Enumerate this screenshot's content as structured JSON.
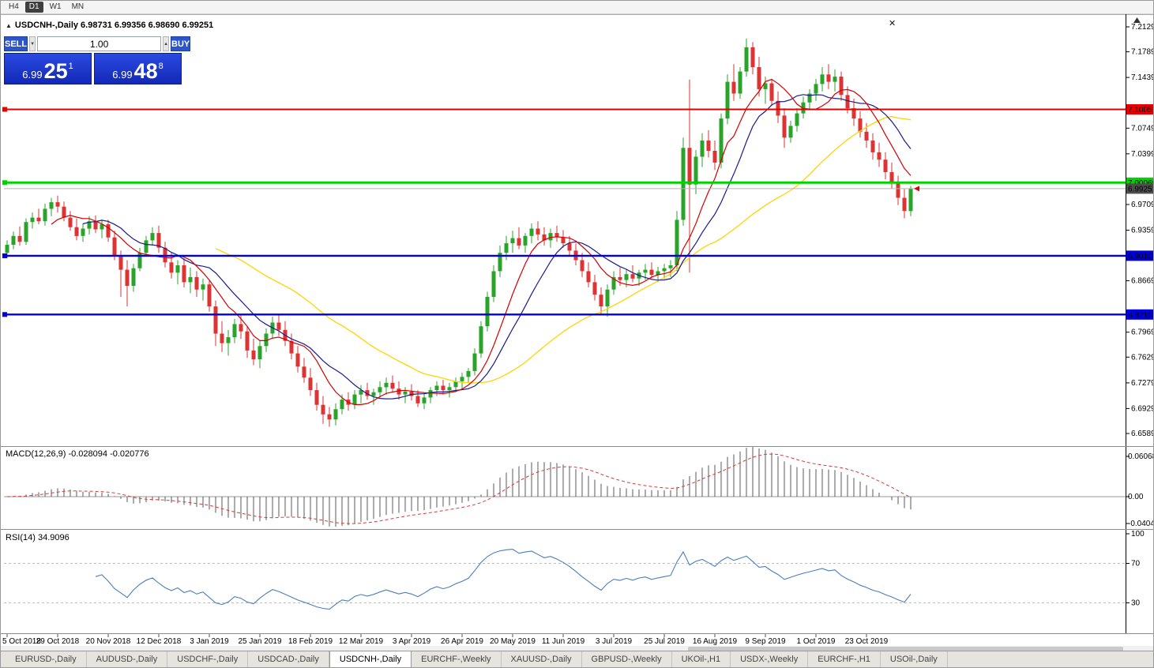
{
  "colors": {
    "up": "#29a329",
    "down": "#dd3333",
    "ma_fast": "#d40000",
    "ma_mid": "#1a1a8c",
    "ma_slow": "#ffd400",
    "line_red": "#e60000",
    "line_green": "#00d400",
    "line_blue": "#0000dd",
    "current_line": "#b4b4b4",
    "current_label_bg": "#4d4d4d",
    "macd_hist": "#5a5a5a",
    "macd_signal": "#d43c3c",
    "rsi_line": "#4a7ebb",
    "accent_blue": "#1d3fd4"
  },
  "icons": {
    "close": "✕",
    "collapse": "▲",
    "spin_up": "▲",
    "spin_down": "▼"
  },
  "toolbar": {
    "timeframes": [
      {
        "label": "H4",
        "active": false
      },
      {
        "label": "D1",
        "active": true
      },
      {
        "label": "W1",
        "active": false
      },
      {
        "label": "MN",
        "active": false
      }
    ]
  },
  "chart_window": {
    "title": "USDCNH-,Daily 6.98731 6.99356 6.98690 6.99251"
  },
  "trade_panel": {
    "sell_label": "SELL",
    "buy_label": "BUY",
    "volume": "1.00",
    "sell_price_main": "6.99",
    "sell_price_big": "25",
    "sell_price_sup": "1",
    "buy_price_main": "6.99",
    "buy_price_big": "48",
    "buy_price_sup": "8"
  },
  "price_axis": {
    "ticks": [
      "7.21290",
      "7.17890",
      "7.14390",
      "7.07490",
      "7.03990",
      "6.97090",
      "6.93590",
      "6.86690",
      "6.79690",
      "6.76290",
      "6.72790",
      "6.69290",
      "6.65890"
    ],
    "levels": [
      {
        "value": "7.10051",
        "color": "red"
      },
      {
        "value": "7.00069",
        "color": "green"
      },
      {
        "value": "6.99251",
        "color": "current"
      },
      {
        "value": "6.90100",
        "color": "blue"
      },
      {
        "value": "6.82103",
        "color": "blue"
      }
    ]
  },
  "macd_panel": {
    "label": "MACD(12,26,9) -0.028094 -0.020776",
    "axis": [
      "0.060687",
      "0.00",
      "-0.040431"
    ]
  },
  "rsi_panel": {
    "label": "RSI(14) 34.9096",
    "axis": [
      "100",
      "70",
      "30"
    ],
    "level_lines": [
      70,
      30
    ]
  },
  "tabs": [
    {
      "label": "EURUSD-,Daily",
      "active": false
    },
    {
      "label": "AUDUSD-,Daily",
      "active": false
    },
    {
      "label": "USDCHF-,Daily",
      "active": false
    },
    {
      "label": "USDCAD-,Daily",
      "active": false
    },
    {
      "label": "USDCNH-,Daily",
      "active": true
    },
    {
      "label": "EURCHF-,Weekly",
      "active": false
    },
    {
      "label": "XAUUSD-,Daily",
      "active": false
    },
    {
      "label": "GBPUSD-,Weekly",
      "active": false
    },
    {
      "label": "UKOil-,H1",
      "active": false
    },
    {
      "label": "USDX-,Weekly",
      "active": false
    },
    {
      "label": "EURCHF-,H1",
      "active": false
    },
    {
      "label": "USOil-,Daily",
      "active": false
    }
  ],
  "chart_data": {
    "type": "candlestick",
    "symbol": "USDCNH",
    "timeframe": "Daily",
    "y_range": [
      6.6589,
      7.2129
    ],
    "x_labels": [
      "5 Oct 2018",
      "29 Oct 2018",
      "20 Nov 2018",
      "12 Dec 2018",
      "3 Jan 2019",
      "25 Jan 2019",
      "18 Feb 2019",
      "12 Mar 2019",
      "3 Apr 2019",
      "26 Apr 2019",
      "20 May 2019",
      "11 Jun 2019",
      "3 Jul 2019",
      "25 Jul 2019",
      "16 Aug 2019",
      "9 Sep 2019",
      "1 Oct 2019",
      "23 Oct 2019"
    ],
    "x_label_every": 8,
    "levels": {
      "resistance_red": 7.10051,
      "pivot_green": 7.00069,
      "current_price": 6.99251,
      "support_blue_upper": 6.901,
      "support_blue_lower": 6.82103
    },
    "indicators": {
      "ma_periods": [
        8,
        13,
        34
      ],
      "macd_params": [
        12,
        26,
        9
      ],
      "macd_values": [
        -0.028094,
        -0.020776
      ],
      "rsi_period": 14,
      "rsi_value": 34.9096
    },
    "candles": [
      [
        6.905,
        6.922,
        6.898,
        6.916
      ],
      [
        6.916,
        6.934,
        6.91,
        6.928
      ],
      [
        6.928,
        6.941,
        6.915,
        6.92
      ],
      [
        6.92,
        6.952,
        6.916,
        6.947
      ],
      [
        6.947,
        6.96,
        6.938,
        6.953
      ],
      [
        6.953,
        6.965,
        6.944,
        6.948
      ],
      [
        6.948,
        6.972,
        6.942,
        6.965
      ],
      [
        6.965,
        6.98,
        6.955,
        6.974
      ],
      [
        6.974,
        6.983,
        6.96,
        6.968
      ],
      [
        6.968,
        6.975,
        6.948,
        6.953
      ],
      [
        6.953,
        6.962,
        6.935,
        6.94
      ],
      [
        6.94,
        6.952,
        6.922,
        6.928
      ],
      [
        6.928,
        6.945,
        6.92,
        6.938
      ],
      [
        6.938,
        6.955,
        6.93,
        6.948
      ],
      [
        6.948,
        6.956,
        6.932,
        6.937
      ],
      [
        6.937,
        6.95,
        6.925,
        6.944
      ],
      [
        6.944,
        6.95,
        6.92,
        6.926
      ],
      [
        6.926,
        6.935,
        6.895,
        6.9
      ],
      [
        6.9,
        6.908,
        6.845,
        6.882
      ],
      [
        6.882,
        6.895,
        6.832,
        6.86
      ],
      [
        6.86,
        6.89,
        6.852,
        6.884
      ],
      [
        6.884,
        6.912,
        6.88,
        6.905
      ],
      [
        6.905,
        6.928,
        6.9,
        6.922
      ],
      [
        6.922,
        6.94,
        6.915,
        6.932
      ],
      [
        6.932,
        6.942,
        6.905,
        6.912
      ],
      [
        6.912,
        6.92,
        6.885,
        6.892
      ],
      [
        6.892,
        6.905,
        6.87,
        6.878
      ],
      [
        6.878,
        6.895,
        6.862,
        6.888
      ],
      [
        6.888,
        6.898,
        6.858,
        6.865
      ],
      [
        6.865,
        6.885,
        6.85,
        6.872
      ],
      [
        6.872,
        6.88,
        6.845,
        6.855
      ],
      [
        6.855,
        6.87,
        6.84,
        6.862
      ],
      [
        6.862,
        6.868,
        6.825,
        6.832
      ],
      [
        6.832,
        6.84,
        6.778,
        6.795
      ],
      [
        6.795,
        6.812,
        6.77,
        6.782
      ],
      [
        6.782,
        6.8,
        6.765,
        6.79
      ],
      [
        6.79,
        6.815,
        6.782,
        6.808
      ],
      [
        6.808,
        6.82,
        6.788,
        6.798
      ],
      [
        6.798,
        6.805,
        6.762,
        6.772
      ],
      [
        6.772,
        6.788,
        6.752,
        6.76
      ],
      [
        6.76,
        6.785,
        6.748,
        6.778
      ],
      [
        6.778,
        6.802,
        6.77,
        6.795
      ],
      [
        6.795,
        6.818,
        6.788,
        6.81
      ],
      [
        6.81,
        6.822,
        6.792,
        6.8
      ],
      [
        6.8,
        6.812,
        6.778,
        6.785
      ],
      [
        6.785,
        6.795,
        6.76,
        6.768
      ],
      [
        6.768,
        6.778,
        6.742,
        6.75
      ],
      [
        6.75,
        6.762,
        6.728,
        6.735
      ],
      [
        6.735,
        6.748,
        6.71,
        6.718
      ],
      [
        6.718,
        6.728,
        6.69,
        6.698
      ],
      [
        6.698,
        6.71,
        6.672,
        6.685
      ],
      [
        6.685,
        6.695,
        6.668,
        6.678
      ],
      [
        6.678,
        6.7,
        6.67,
        6.692
      ],
      [
        6.692,
        6.712,
        6.685,
        6.705
      ],
      [
        6.705,
        6.715,
        6.69,
        6.698
      ],
      [
        6.698,
        6.718,
        6.692,
        6.712
      ],
      [
        6.712,
        6.725,
        6.7,
        6.718
      ],
      [
        6.718,
        6.728,
        6.705,
        6.71
      ],
      [
        6.71,
        6.72,
        6.698,
        6.715
      ],
      [
        6.715,
        6.73,
        6.708,
        6.722
      ],
      [
        6.722,
        6.735,
        6.712,
        6.728
      ],
      [
        6.728,
        6.738,
        6.715,
        6.72
      ],
      [
        6.72,
        6.73,
        6.705,
        6.712
      ],
      [
        6.712,
        6.722,
        6.7,
        6.716
      ],
      [
        6.716,
        6.726,
        6.704,
        6.71
      ],
      [
        6.71,
        6.718,
        6.695,
        6.7
      ],
      [
        6.7,
        6.715,
        6.692,
        6.708
      ],
      [
        6.708,
        6.722,
        6.7,
        6.718
      ],
      [
        6.718,
        6.73,
        6.71,
        6.724
      ],
      [
        6.724,
        6.732,
        6.712,
        6.718
      ],
      [
        6.718,
        6.728,
        6.708,
        6.722
      ],
      [
        6.722,
        6.735,
        6.715,
        6.73
      ],
      [
        6.73,
        6.742,
        6.72,
        6.736
      ],
      [
        6.736,
        6.748,
        6.728,
        6.744
      ],
      [
        6.744,
        6.775,
        6.738,
        6.768
      ],
      [
        6.768,
        6.812,
        6.762,
        6.805
      ],
      [
        6.805,
        6.852,
        6.798,
        6.845
      ],
      [
        6.845,
        6.888,
        6.838,
        6.88
      ],
      [
        6.88,
        6.915,
        6.872,
        6.905
      ],
      [
        6.905,
        6.928,
        6.895,
        6.918
      ],
      [
        6.918,
        6.935,
        6.905,
        6.925
      ],
      [
        6.925,
        6.94,
        6.91,
        6.915
      ],
      [
        6.915,
        6.932,
        6.905,
        6.928
      ],
      [
        6.928,
        6.945,
        6.918,
        6.938
      ],
      [
        6.938,
        6.948,
        6.922,
        6.93
      ],
      [
        6.93,
        6.94,
        6.915,
        6.922
      ],
      [
        6.922,
        6.938,
        6.912,
        6.932
      ],
      [
        6.932,
        6.942,
        6.92,
        6.926
      ],
      [
        6.926,
        6.936,
        6.912,
        6.918
      ],
      [
        6.918,
        6.928,
        6.9,
        6.908
      ],
      [
        6.908,
        6.918,
        6.888,
        6.895
      ],
      [
        6.895,
        6.905,
        6.872,
        6.88
      ],
      [
        6.88,
        6.892,
        6.858,
        6.865
      ],
      [
        6.865,
        6.875,
        6.84,
        6.848
      ],
      [
        6.848,
        6.858,
        6.82,
        6.832
      ],
      [
        6.832,
        6.862,
        6.818,
        6.855
      ],
      [
        6.855,
        6.88,
        6.848,
        6.872
      ],
      [
        6.872,
        6.885,
        6.86,
        6.868
      ],
      [
        6.868,
        6.882,
        6.858,
        6.876
      ],
      [
        6.876,
        6.888,
        6.865,
        6.87
      ],
      [
        6.87,
        6.882,
        6.86,
        6.878
      ],
      [
        6.878,
        6.89,
        6.868,
        6.882
      ],
      [
        6.882,
        6.892,
        6.87,
        6.875
      ],
      [
        6.875,
        6.886,
        6.865,
        6.88
      ],
      [
        6.88,
        6.89,
        6.87,
        6.884
      ],
      [
        6.884,
        6.895,
        6.872,
        6.888
      ],
      [
        6.888,
        6.962,
        6.88,
        6.95
      ],
      [
        6.95,
        7.062,
        6.942,
        7.048
      ],
      [
        7.048,
        7.141,
        6.878,
        6.998
      ],
      [
        6.998,
        7.045,
        6.985,
        7.036
      ],
      [
        7.036,
        7.068,
        7.022,
        7.058
      ],
      [
        7.058,
        7.072,
        7.035,
        7.044
      ],
      [
        7.044,
        7.058,
        7.018,
        7.028
      ],
      [
        7.028,
        7.095,
        7.02,
        7.088
      ],
      [
        7.088,
        7.148,
        7.08,
        7.138
      ],
      [
        7.138,
        7.162,
        7.112,
        7.122
      ],
      [
        7.122,
        7.158,
        7.115,
        7.152
      ],
      [
        7.152,
        7.197,
        7.145,
        7.185
      ],
      [
        7.185,
        7.192,
        7.148,
        7.158
      ],
      [
        7.158,
        7.172,
        7.118,
        7.128
      ],
      [
        7.128,
        7.145,
        7.108,
        7.136
      ],
      [
        7.136,
        7.142,
        7.105,
        7.112
      ],
      [
        7.112,
        7.125,
        7.082,
        7.092
      ],
      [
        7.092,
        7.102,
        7.048,
        7.062
      ],
      [
        7.062,
        7.085,
        7.055,
        7.078
      ],
      [
        7.078,
        7.102,
        7.07,
        7.095
      ],
      [
        7.095,
        7.118,
        7.088,
        7.11
      ],
      [
        7.11,
        7.128,
        7.1,
        7.122
      ],
      [
        7.122,
        7.142,
        7.112,
        7.135
      ],
      [
        7.135,
        7.158,
        7.125,
        7.148
      ],
      [
        7.148,
        7.162,
        7.128,
        7.138
      ],
      [
        7.138,
        7.155,
        7.125,
        7.145
      ],
      [
        7.145,
        7.152,
        7.112,
        7.12
      ],
      [
        7.12,
        7.132,
        7.095,
        7.102
      ],
      [
        7.102,
        7.115,
        7.078,
        7.088
      ],
      [
        7.088,
        7.098,
        7.062,
        7.07
      ],
      [
        7.07,
        7.082,
        7.048,
        7.058
      ],
      [
        7.058,
        7.068,
        7.032,
        7.042
      ],
      [
        7.042,
        7.055,
        7.022,
        7.032
      ],
      [
        7.032,
        7.042,
        7.005,
        7.015
      ],
      [
        7.015,
        7.028,
        6.992,
        7.0
      ],
      [
        7.0,
        7.01,
        6.97,
        6.98
      ],
      [
        6.98,
        6.992,
        6.952,
        6.962
      ],
      [
        6.962,
        6.996,
        6.955,
        6.9925
      ]
    ]
  }
}
